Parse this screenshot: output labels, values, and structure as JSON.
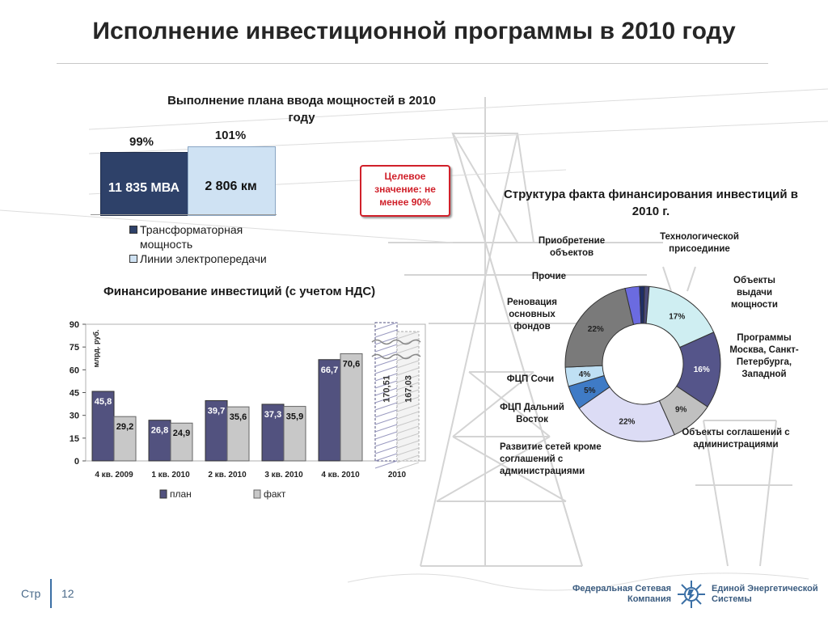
{
  "title": "Исполнение инвестиционной программы в 2010 году",
  "capacity": {
    "title": "Выполнение плана ввода мощностей в 2010 году",
    "bars": [
      {
        "label": "11 835 МВА",
        "percent": "99%",
        "color": "#2e4169"
      },
      {
        "label": "2 806 км",
        "percent": "101%",
        "color": "#cfe2f3"
      }
    ],
    "legend": [
      {
        "label": "Трансформаторная мощность"
      },
      {
        "label": "Линии электропередачи"
      }
    ],
    "target": "Целевое значение: не менее 90%"
  },
  "financing": {
    "title": "Финансирование инвестиций (с учетом НДС)",
    "ylabel": "млрд. руб.",
    "legend_plan": "план",
    "legend_fact": "факт"
  },
  "structure_title": "Структура факта финансирования инвестиций в 2010 г.",
  "footer": {
    "page_prefix": "Стр",
    "page_number": "12",
    "logo_left": "Федеральная Сетевая Компания",
    "logo_right": "Единой Энергетической Системы"
  },
  "chart_data": [
    {
      "type": "bar",
      "title": "Финансирование инвестиций (с учетом НДС)",
      "ylabel": "млрд. руб.",
      "ylim": [
        0,
        90
      ],
      "yticks": [
        0,
        15,
        30,
        45,
        60,
        75,
        90
      ],
      "categories": [
        "4 кв. 2009",
        "1 кв. 2010",
        "2 кв. 2010",
        "3 кв. 2010",
        "4 кв. 2010"
      ],
      "series": [
        {
          "name": "план",
          "values": [
            45.8,
            26.8,
            39.7,
            37.3,
            66.7
          ],
          "labels": [
            "45,8",
            "26,8",
            "39,7",
            "37,3",
            "66,7"
          ],
          "color": "#52527f"
        },
        {
          "name": "факт",
          "values": [
            29.2,
            24.9,
            35.6,
            35.9,
            70.6
          ],
          "labels": [
            "29,2",
            "24,9",
            "35,6",
            "35,9",
            "70,6"
          ],
          "color": "#c8c8c8"
        }
      ],
      "broken": {
        "category": "2010",
        "plan": 170.51,
        "plan_label": "170,51",
        "fact": 167.03,
        "fact_label": "167,03"
      },
      "grid": false,
      "legend_position": "bottom"
    },
    {
      "type": "pie",
      "title": "Структура факта финансирования инвестиций в 2010 г.",
      "donut": true,
      "slices": [
        {
          "label": "Технологической присоединие",
          "value": 1,
          "pct": "1%",
          "color": "#4a4a7a"
        },
        {
          "label": "Объекты выдачи мощности",
          "value": 17,
          "pct": "17%",
          "color": "#cfeef2"
        },
        {
          "label": "Программы Москва, Санкт-Петербурга, Западной",
          "value": 16,
          "pct": "16%",
          "color": "#55558a"
        },
        {
          "label": "Объекты соглашений с администрациями",
          "value": 9,
          "pct": "9%",
          "color": "#c0c0c0"
        },
        {
          "label": "Развитие сетей кроме соглашений с администрациями",
          "value": 22,
          "pct": "22%",
          "color": "#dcdcf5"
        },
        {
          "label": "ФЦП Дальний Восток",
          "value": 5,
          "pct": "5%",
          "color": "#3f7bc6"
        },
        {
          "label": "ФЦП Сочи",
          "value": 4,
          "pct": "4%",
          "color": "#bfe0f4"
        },
        {
          "label": "Реновация основных фондов",
          "value": 22,
          "pct": "22%",
          "color": "#7a7a7a"
        },
        {
          "label": "Прочие",
          "value": 3,
          "pct": "3%",
          "color": "#6b6be0"
        },
        {
          "label": "Приобретение объектов",
          "value": 1,
          "pct": "1%",
          "color": "#1f2e66"
        }
      ]
    }
  ]
}
